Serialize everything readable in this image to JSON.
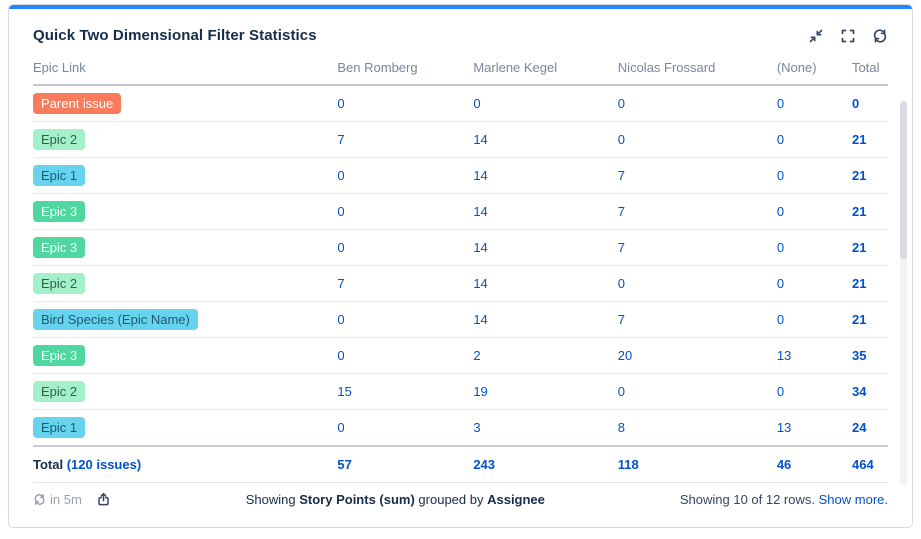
{
  "card": {
    "title": "Quick Two Dimensional Filter Statistics",
    "toolbar_icons": [
      "minimize",
      "expand",
      "refresh"
    ]
  },
  "colors": {
    "accent": "#2684FF",
    "link": "#0052CC",
    "title_text": "#172B4D",
    "column_header_text": "#7A869A",
    "muted_text": "#97A0AF",
    "icon": "#344563"
  },
  "badge_styles": {
    "orange": {
      "bg": "#F87B5B",
      "fg": "#FFFFFF"
    },
    "green_light": {
      "bg": "#A4F0CB",
      "fg": "#31604E"
    },
    "green": {
      "bg": "#50D69F",
      "fg": "#FFFFFF"
    },
    "cyan": {
      "bg": "#67D3EC",
      "fg": "#1A5A74"
    }
  },
  "table": {
    "columns": [
      "Epic Link",
      "Ben Romberg",
      "Marlene Kegel",
      "Nicolas Frossard",
      "(None)",
      "Total"
    ],
    "rows": [
      {
        "label": "Parent issue",
        "style": "orange",
        "values": [
          "0",
          "0",
          "0",
          "0",
          "0"
        ]
      },
      {
        "label": "Epic 2",
        "style": "green_light",
        "values": [
          "7",
          "14",
          "0",
          "0",
          "21"
        ]
      },
      {
        "label": "Epic 1",
        "style": "cyan",
        "values": [
          "0",
          "14",
          "7",
          "0",
          "21"
        ]
      },
      {
        "label": "Epic 3",
        "style": "green",
        "values": [
          "0",
          "14",
          "7",
          "0",
          "21"
        ]
      },
      {
        "label": "Epic 3",
        "style": "green",
        "values": [
          "0",
          "14",
          "7",
          "0",
          "21"
        ]
      },
      {
        "label": "Epic 2",
        "style": "green_light",
        "values": [
          "7",
          "14",
          "0",
          "0",
          "21"
        ]
      },
      {
        "label": "Bird Species (Epic Name)",
        "style": "cyan",
        "values": [
          "0",
          "14",
          "7",
          "0",
          "21"
        ]
      },
      {
        "label": "Epic 3",
        "style": "green",
        "values": [
          "0",
          "2",
          "20",
          "13",
          "35"
        ]
      },
      {
        "label": "Epic 2",
        "style": "green_light",
        "values": [
          "15",
          "19",
          "0",
          "0",
          "34"
        ]
      },
      {
        "label": "Epic 1",
        "style": "cyan",
        "values": [
          "0",
          "3",
          "8",
          "13",
          "24"
        ]
      }
    ],
    "total_label": "Total",
    "total_count": "(120 issues)",
    "total_values": [
      "57",
      "243",
      "118",
      "46",
      "464"
    ]
  },
  "footer": {
    "refresh_countdown": "in 5m",
    "summary_prefix": "Showing ",
    "summary_metric": "Story Points (sum)",
    "summary_middle": " grouped by ",
    "summary_group": "Assignee",
    "rows_shown": "Showing 10 of 12 rows.",
    "show_more_label": "Show more."
  }
}
